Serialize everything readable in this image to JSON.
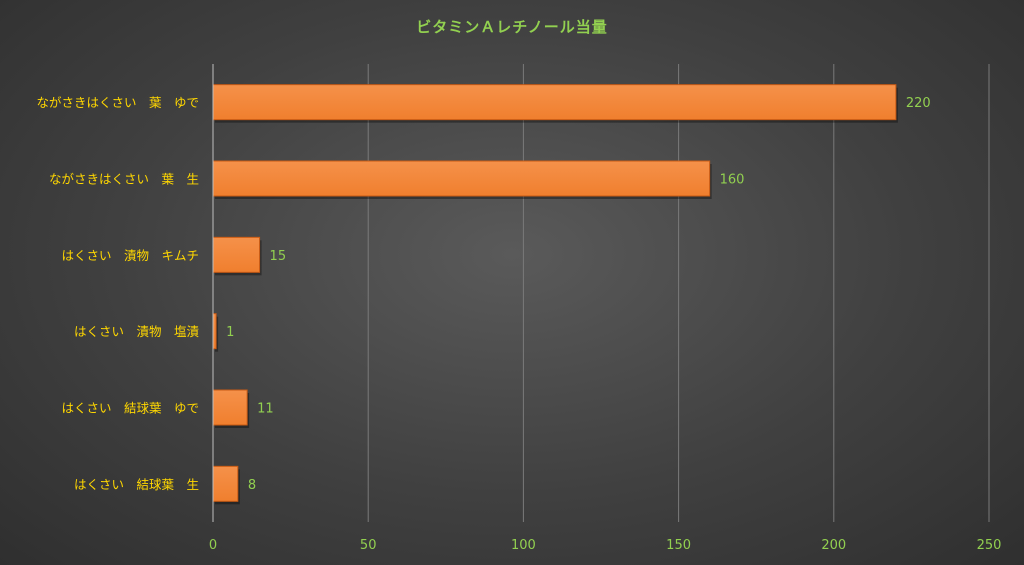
{
  "colors": {
    "bar": "#f07f2e",
    "bar_edge": "#c85a14",
    "title": "#92d050",
    "category_label": "#ffd700",
    "value_label": "#92d050",
    "tick_label": "#92d050",
    "gridline": "#7a7a7a"
  },
  "chart_data": {
    "type": "bar",
    "orientation": "horizontal",
    "title": "ビタミンＡレチノール当量",
    "categories": [
      "ながさきはくさい　葉　ゆで",
      "ながさきはくさい　葉　生",
      "はくさい　漬物　キムチ",
      "はくさい　漬物　塩漬",
      "はくさい　結球葉　ゆで",
      "はくさい　結球葉　生"
    ],
    "values": [
      220,
      160,
      15,
      1,
      11,
      8
    ],
    "xlim": [
      0,
      250
    ],
    "xticks": [
      0,
      50,
      100,
      150,
      200,
      250
    ],
    "grid": true,
    "legend": "none"
  }
}
